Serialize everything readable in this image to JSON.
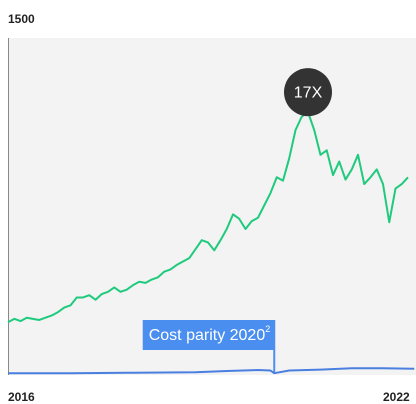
{
  "chart_data": {
    "type": "line",
    "xlim": [
      2016,
      2022.53
    ],
    "xticks": [
      2016,
      2022
    ],
    "ylim": [
      0,
      1500
    ],
    "yticks": [
      1500
    ],
    "series": [
      {
        "color": "#1fca7d",
        "x": [
          2016,
          2016.1,
          2016.2,
          2016.3,
          2016.4,
          2016.5,
          2016.6,
          2016.7,
          2016.8,
          2016.9,
          2017,
          2017.1,
          2017.2,
          2017.3,
          2017.4,
          2017.5,
          2017.6,
          2017.7,
          2017.8,
          2017.9,
          2018,
          2018.1,
          2018.2,
          2018.3,
          2018.4,
          2018.5,
          2018.6,
          2018.7,
          2018.8,
          2018.9,
          2019,
          2019.1,
          2019.2,
          2019.3,
          2019.4,
          2019.5,
          2019.6,
          2019.7,
          2019.8,
          2019.9,
          2020,
          2020.1,
          2020.2,
          2020.3,
          2020.4,
          2020.5,
          2020.6,
          2020.7,
          2020.8,
          2020.9,
          2021,
          2021.1,
          2021.2,
          2021.3,
          2021.4,
          2021.5,
          2021.6,
          2021.7,
          2021.8,
          2021.9,
          2022,
          2022.1,
          2022.2,
          2022.3,
          2022.4
        ],
        "values": [
          235,
          250,
          240,
          255,
          250,
          245,
          255,
          265,
          280,
          300,
          310,
          345,
          345,
          355,
          335,
          360,
          370,
          390,
          370,
          380,
          400,
          415,
          410,
          425,
          435,
          460,
          470,
          490,
          505,
          520,
          560,
          600,
          590,
          555,
          600,
          650,
          715,
          695,
          650,
          685,
          700,
          755,
          810,
          880,
          865,
          965,
          1090,
          1150,
          1170,
          1090,
          980,
          1000,
          890,
          950,
          870,
          915,
          980,
          850,
          880,
          915,
          850,
          680,
          830,
          850,
          880
        ]
      },
      {
        "color": "#4a7fe0",
        "x": [
          2016,
          2017,
          2018,
          2019,
          2019.5,
          2020,
          2020.2,
          2020.26,
          2020.5,
          2021,
          2021.5,
          2022,
          2022.5
        ],
        "values": [
          8,
          8,
          10,
          12,
          18,
          22,
          20,
          8,
          20,
          24,
          30,
          30,
          28
        ]
      }
    ],
    "annotations": [
      {
        "text": "17X",
        "x": 2020.8,
        "y": 1170
      },
      {
        "text": "Cost parity 2020",
        "footnote": "2",
        "x": 2020.26
      }
    ]
  }
}
